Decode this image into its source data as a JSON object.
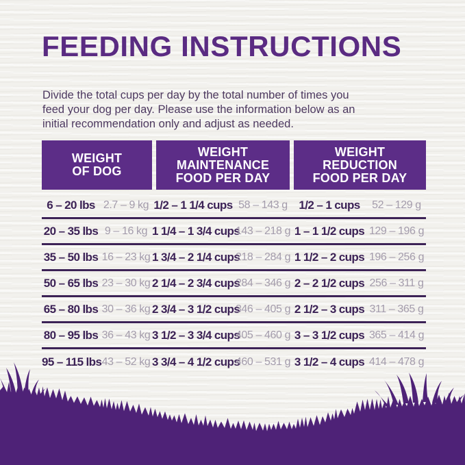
{
  "page": {
    "title": "FEEDING INSTRUCTIONS",
    "intro_lines": [
      "Divide the total cups per day by the total number of times you",
      "feed your dog per day. Please use the information below as an",
      "initial recommendation only and adjust as needed."
    ]
  },
  "table": {
    "headers": [
      {
        "lines": [
          "WEIGHT",
          "OF DOG"
        ]
      },
      {
        "lines": [
          "WEIGHT",
          "MAINTENANCE",
          "FOOD PER DAY"
        ]
      },
      {
        "lines": [
          "WEIGHT",
          "REDUCTION",
          "FOOD PER DAY"
        ]
      }
    ],
    "rows": [
      {
        "lbs": "6 – 20 lbs",
        "kg": "2.7 – 9 kg",
        "maint_cups": "1/2 – 1 1/4 cups",
        "maint_g": "58 – 143 g",
        "red_cups": "1/2 – 1 cups",
        "red_g": "52 – 129 g"
      },
      {
        "lbs": "20 – 35 lbs",
        "kg": "9 – 16 kg",
        "maint_cups": "1 1/4 – 1 3/4 cups",
        "maint_g": "143 – 218 g",
        "red_cups": "1 – 1 1/2 cups",
        "red_g": "129 – 196 g"
      },
      {
        "lbs": "35 – 50 lbs",
        "kg": "16 – 23 kg",
        "maint_cups": "1 3/4 – 2 1/4 cups",
        "maint_g": "218 – 284 g",
        "red_cups": "1 1/2 – 2 cups",
        "red_g": "196 – 256 g"
      },
      {
        "lbs": "50 – 65 lbs",
        "kg": "23 – 30 kg",
        "maint_cups": "2 1/4 – 2 3/4 cups",
        "maint_g": "284 – 346 g",
        "red_cups": "2 – 2 1/2 cups",
        "red_g": "256 – 311 g"
      },
      {
        "lbs": "65 – 80 lbs",
        "kg": "30 – 36 kg",
        "maint_cups": "2 3/4 – 3 1/2 cups",
        "maint_g": "346 – 405 g",
        "red_cups": "2 1/2 – 3 cups",
        "red_g": "311 – 365 g"
      },
      {
        "lbs": "80 – 95 lbs",
        "kg": "36 – 43 kg",
        "maint_cups": "3 1/2 – 3 3/4 cups",
        "maint_g": "405 – 460 g",
        "red_cups": "3 – 3 1/2 cups",
        "red_g": "365 – 414 g"
      },
      {
        "lbs": "95 – 115 lbs",
        "kg": "43 – 52 kg",
        "maint_cups": "3 3/4 – 4 1/2 cups",
        "maint_g": "460 – 531 g",
        "red_cups": "3 1/2 – 4 cups",
        "red_g": "414 – 478 g"
      }
    ]
  },
  "colors": {
    "header_bg": "#5c2d87",
    "grass": "#4e2277",
    "title": "#5a2b82",
    "ink": "#3c2256",
    "muted": "#a49cac",
    "body_text": "#4d3960",
    "background": "#f2f1ed"
  }
}
